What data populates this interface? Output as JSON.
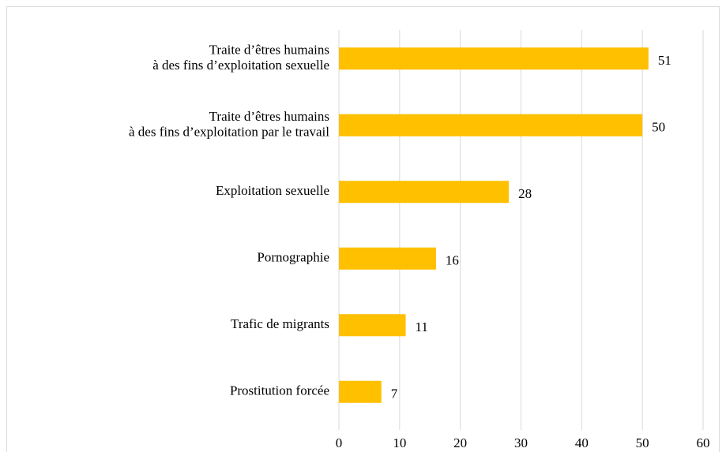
{
  "chart_data": {
    "type": "bar",
    "orientation": "horizontal",
    "categories": [
      "Traite d’êtres humains\nà des fins d’exploitation sexuelle",
      "Traite d’êtres humains\nà des fins d’exploitation par le travail",
      "Exploitation sexuelle",
      "Pornographie",
      "Trafic de migrants",
      "Prostitution forcée"
    ],
    "values": [
      51,
      50,
      28,
      16,
      11,
      7
    ],
    "color": "#ffc000",
    "xlim": [
      0,
      60
    ],
    "xticks": [
      0,
      10,
      20,
      30,
      40,
      50,
      60
    ],
    "grid": true
  }
}
